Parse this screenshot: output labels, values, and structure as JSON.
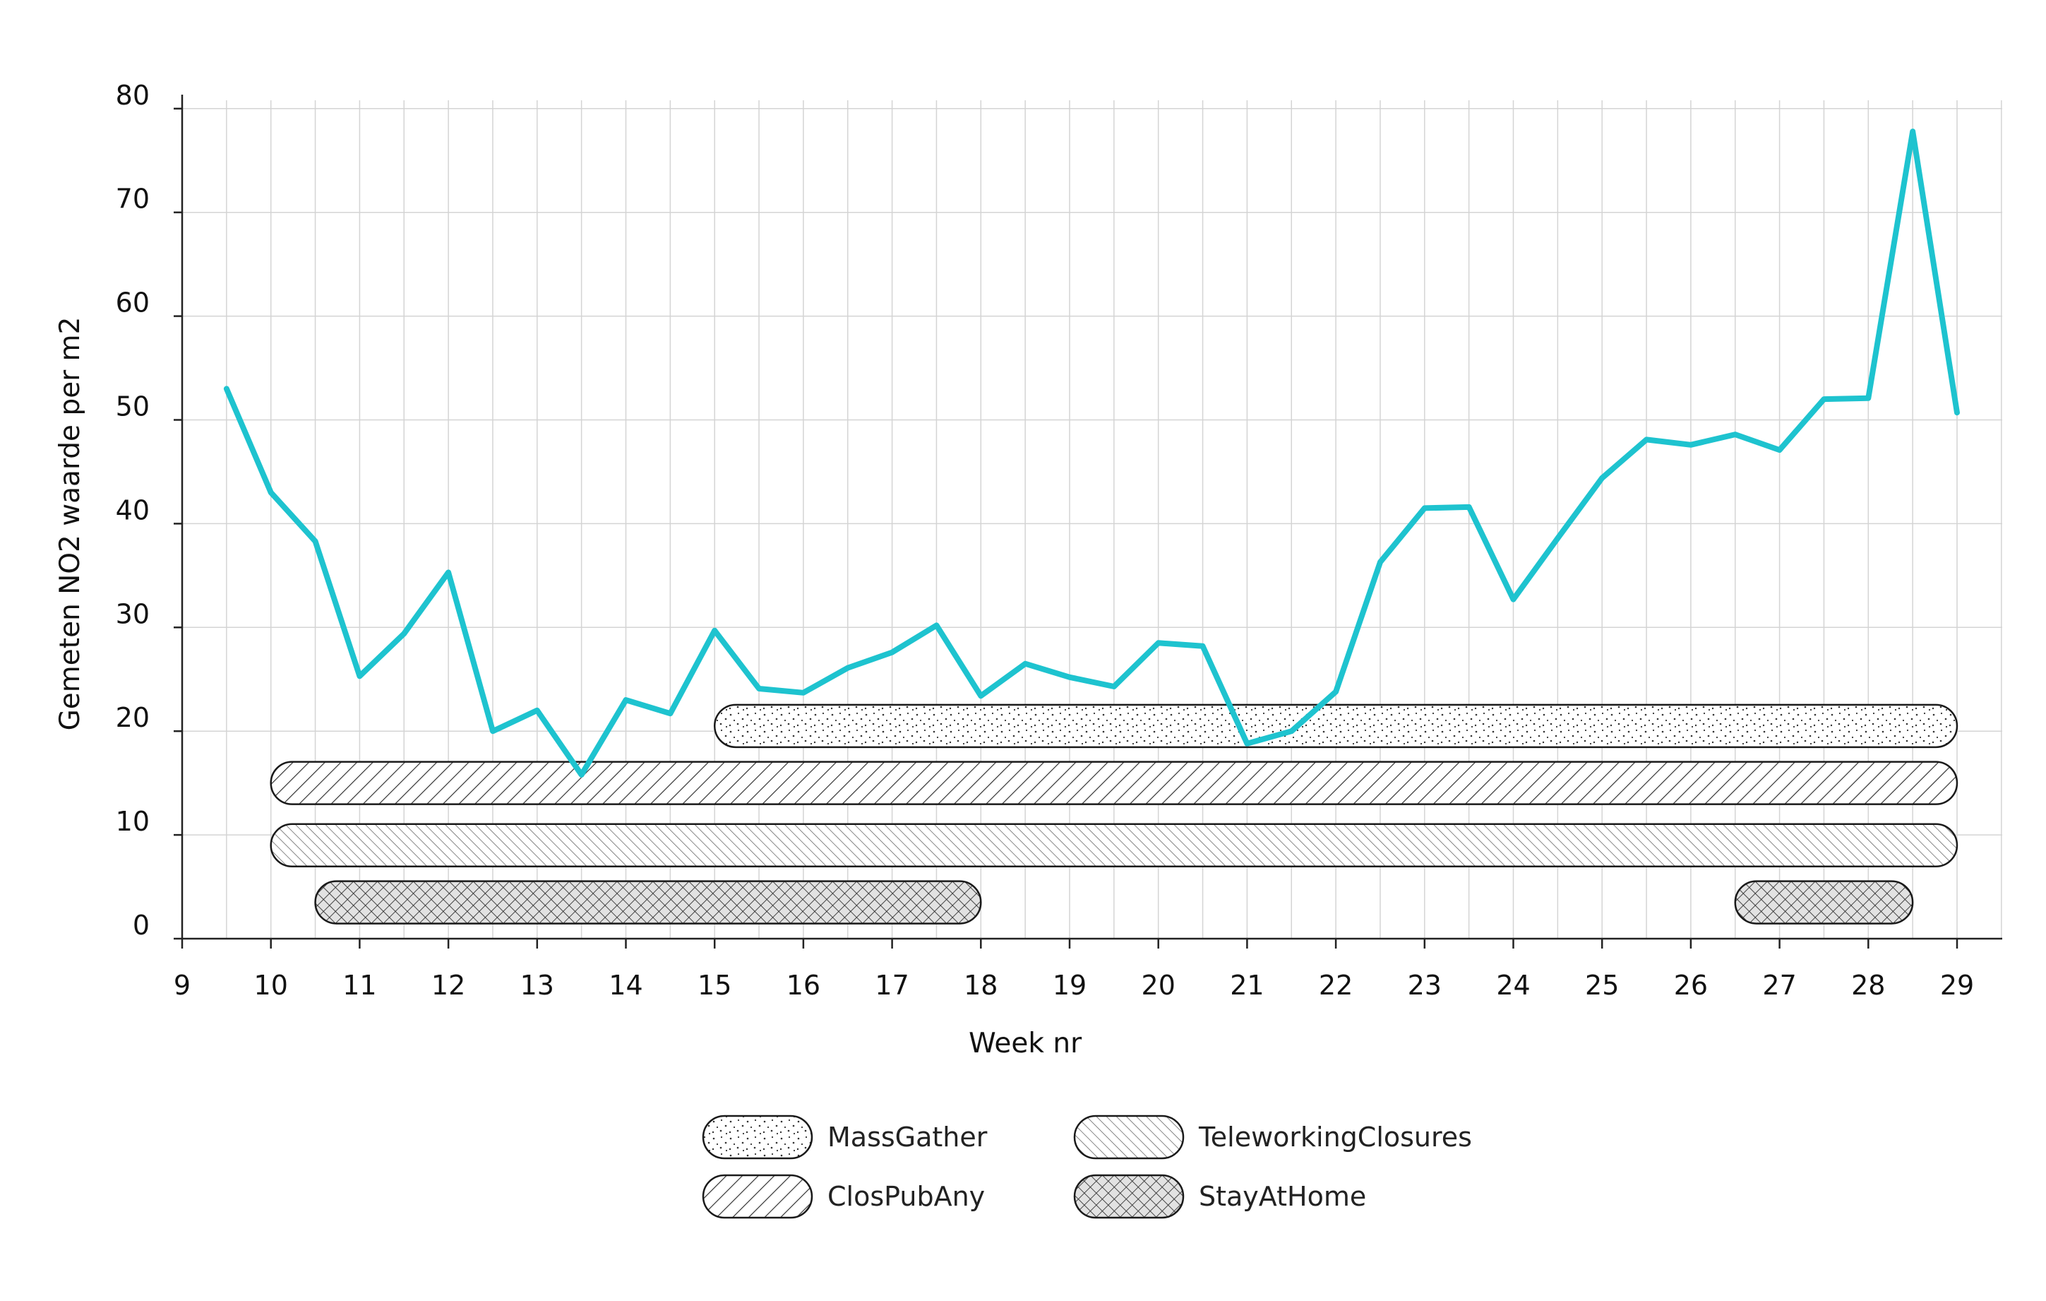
{
  "chart_data": {
    "type": "line",
    "title": "",
    "xlabel": "Week nr",
    "ylabel": "Gemeten NO2 waarde per m2",
    "xlim": [
      9,
      29.5
    ],
    "ylim": [
      0,
      80
    ],
    "x_ticks": [
      9,
      10,
      11,
      12,
      13,
      14,
      15,
      16,
      17,
      18,
      19,
      20,
      21,
      22,
      23,
      24,
      25,
      26,
      27,
      28,
      29
    ],
    "y_ticks": [
      0,
      10,
      20,
      30,
      40,
      50,
      60,
      70,
      80
    ],
    "grid": true,
    "series_color": "#1ec3cf",
    "series": [
      {
        "x": [
          9.5,
          10,
          10.5,
          11,
          11.5,
          12,
          12.5,
          13,
          13.5,
          14,
          14.5,
          15,
          15.5,
          16,
          16.5,
          17,
          17.5,
          18,
          18.5,
          19,
          19.5,
          20,
          20.5,
          21,
          21.5,
          22,
          22.5,
          23,
          23.5,
          24,
          24.5,
          25,
          25.5,
          26,
          26.5,
          27,
          27.5,
          28,
          28.5,
          29
        ],
        "values": [
          53,
          43,
          38.3,
          25.3,
          29.4,
          35.3,
          20,
          22,
          15.8,
          23,
          21.7,
          29.7,
          24.1,
          23.7,
          26.1,
          27.6,
          30.2,
          23.4,
          26.5,
          25.2,
          24.3,
          28.5,
          28.2,
          18.8,
          20,
          23.8,
          36.3,
          41.5,
          41.6,
          32.7,
          38.6,
          44.4,
          48.1,
          47.6,
          48.6,
          47.1,
          52,
          52.1,
          77.8,
          50.7
        ]
      }
    ],
    "measures": [
      {
        "name": "MassGather",
        "start": 15,
        "end": 29,
        "level": 20.5,
        "pattern": "dots"
      },
      {
        "name": "ClosPubAny",
        "start": 10,
        "end": 29,
        "level": 15,
        "pattern": "diagonal-hatch"
      },
      {
        "name": "TeleworkingClosures",
        "start": 10,
        "end": 29,
        "level": 9,
        "pattern": "fine-hatch"
      },
      {
        "name": "StayAtHome",
        "start": 10.5,
        "end": 18,
        "level": 3.5,
        "pattern": "crosshatch"
      },
      {
        "name": "StayAtHome",
        "start": 26.5,
        "end": 28.5,
        "level": 3.5,
        "pattern": "crosshatch"
      }
    ],
    "legend": [
      {
        "label": "MassGather",
        "pattern": "dots"
      },
      {
        "label": "TeleworkingClosures",
        "pattern": "fine-hatch"
      },
      {
        "label": "ClosPubAny",
        "pattern": "diagonal-hatch"
      },
      {
        "label": "StayAtHome",
        "pattern": "crosshatch"
      }
    ],
    "legend_placement": "bottom-center"
  }
}
